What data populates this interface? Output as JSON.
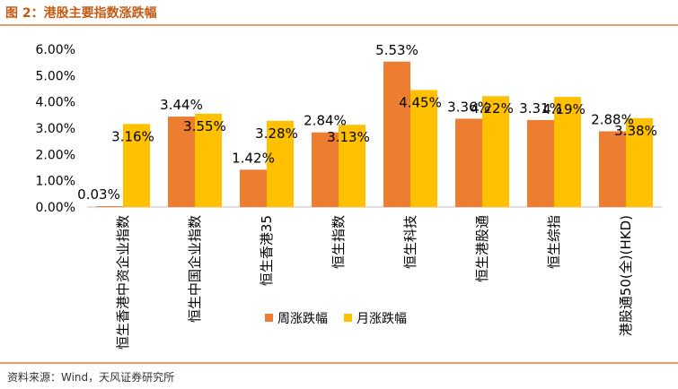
{
  "figure": {
    "title": "图 2：港股主要指数涨跌幅",
    "source": "资料来源：Wind，天风证券研究所"
  },
  "colors": {
    "accent_orange": "#ed7d31",
    "accent_yellow": "#ffc000",
    "title_color": "#c55a11",
    "rule_color": "#e07b39"
  },
  "chart_data": {
    "type": "bar",
    "title": "",
    "xlabel": "",
    "ylabel": "",
    "ylim": [
      0,
      6
    ],
    "yticks": [
      "0.00%",
      "1.00%",
      "2.00%",
      "3.00%",
      "4.00%",
      "5.00%",
      "6.00%"
    ],
    "grid": false,
    "legend_position": "bottom",
    "categories": [
      "恒生香港中资企业指数",
      "恒生中国企业指数",
      "恒生香港35",
      "恒生指数",
      "恒生科技",
      "恒生港股通",
      "恒生综指",
      "港股通50(全)(HKD)"
    ],
    "series": [
      {
        "name": "周涨跌幅",
        "color": "#ed7d31",
        "values": [
          0.03,
          3.44,
          1.42,
          2.84,
          5.53,
          3.36,
          3.31,
          2.88
        ],
        "labels": [
          "0.03%",
          "3.44%",
          "1.42%",
          "2.84%",
          "5.53%",
          "3.36%",
          "3.31%",
          "2.88%"
        ]
      },
      {
        "name": "月涨跌幅",
        "color": "#ffc000",
        "values": [
          3.16,
          3.55,
          3.28,
          3.13,
          4.45,
          4.22,
          4.19,
          3.38
        ],
        "labels": [
          "3.16%",
          "3.55%",
          "3.28%",
          "3.13%",
          "4.45%",
          "4.22%",
          "4.19%",
          "3.38%"
        ]
      }
    ]
  }
}
